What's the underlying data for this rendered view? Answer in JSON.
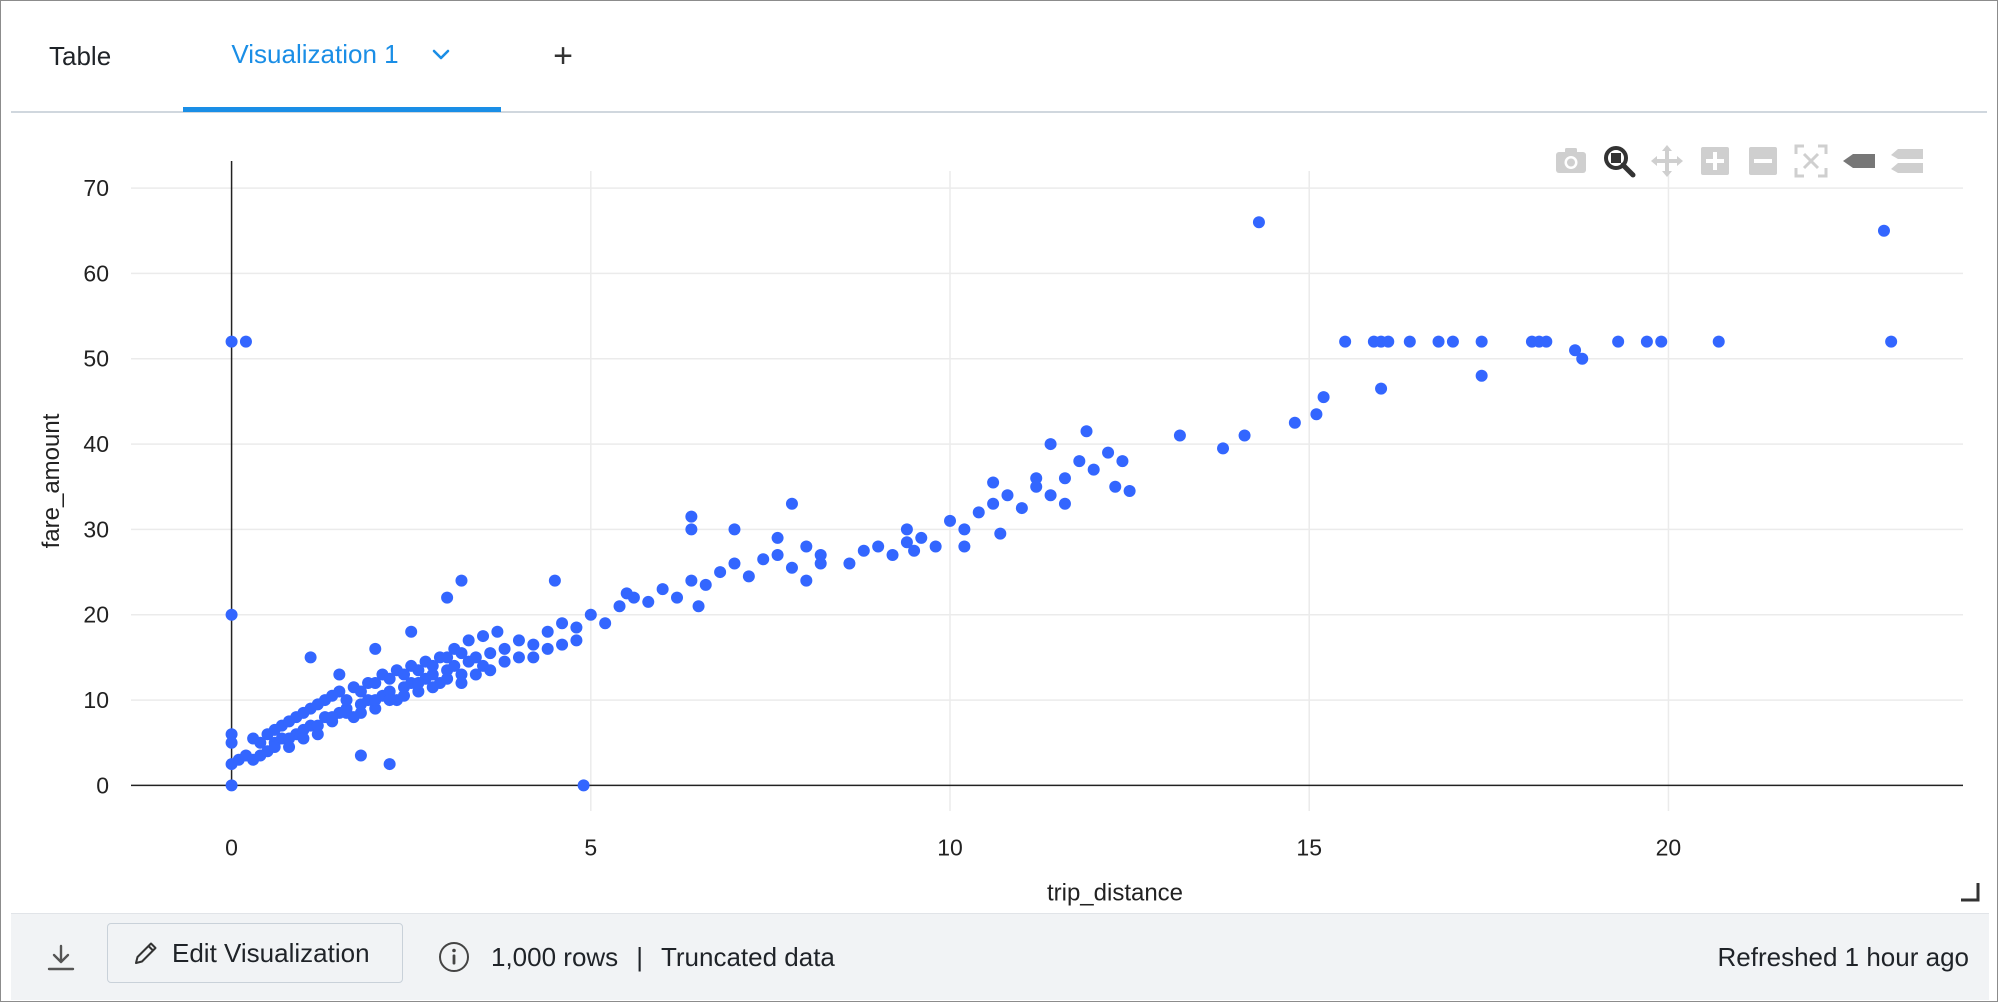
{
  "tabs": [
    {
      "label": "Table"
    },
    {
      "label": "Visualization 1"
    }
  ],
  "add_tab_label": "+",
  "modebar": {
    "icons": [
      "camera-icon",
      "zoom-icon",
      "pan-icon",
      "zoom-in-icon",
      "zoom-out-icon",
      "autoscale-icon",
      "hover-closest-icon",
      "hover-compare-icon"
    ]
  },
  "colors": {
    "accent": "#1a8ee6",
    "marker": "#3366ff"
  },
  "chart_data": {
    "type": "scatter",
    "xlabel": "trip_distance",
    "ylabel": "fare_amount",
    "xlim": [
      -1.4,
      24.1
    ],
    "ylim": [
      -3,
      72
    ],
    "xticks": [
      0,
      5,
      10,
      15,
      20
    ],
    "yticks": [
      0,
      10,
      20,
      30,
      40,
      50,
      60,
      70
    ],
    "grid": true,
    "points": [
      [
        0,
        52
      ],
      [
        0.2,
        52
      ],
      [
        0,
        20
      ],
      [
        0,
        6
      ],
      [
        0,
        5
      ],
      [
        0,
        2.5
      ],
      [
        0,
        0
      ],
      [
        4.9,
        0
      ],
      [
        1.8,
        3.5
      ],
      [
        2.2,
        2.5
      ],
      [
        0.1,
        3
      ],
      [
        0.2,
        3.5
      ],
      [
        0.3,
        3
      ],
      [
        0.4,
        3.5
      ],
      [
        0.5,
        4
      ],
      [
        0.6,
        5
      ],
      [
        0.7,
        5.5
      ],
      [
        0.8,
        4.5
      ],
      [
        0.9,
        6
      ],
      [
        1.0,
        6.5
      ],
      [
        1.1,
        7
      ],
      [
        1.2,
        6
      ],
      [
        1.3,
        8
      ],
      [
        1.4,
        7.5
      ],
      [
        1.5,
        8.5
      ],
      [
        1.6,
        9
      ],
      [
        1.7,
        8
      ],
      [
        1.8,
        9.5
      ],
      [
        1.9,
        10
      ],
      [
        2.0,
        9
      ],
      [
        2.1,
        10.5
      ],
      [
        2.2,
        11
      ],
      [
        2.3,
        10
      ],
      [
        2.4,
        11.5
      ],
      [
        2.5,
        12
      ],
      [
        2.6,
        11
      ],
      [
        2.7,
        12.5
      ],
      [
        2.8,
        13
      ],
      [
        2.9,
        12
      ],
      [
        3.0,
        13.5
      ],
      [
        3.1,
        14
      ],
      [
        3.2,
        13
      ],
      [
        3.3,
        14.5
      ],
      [
        3.4,
        15
      ],
      [
        3.5,
        14
      ],
      [
        3.6,
        15.5
      ],
      [
        3.8,
        16
      ],
      [
        4.0,
        17
      ],
      [
        4.2,
        16.5
      ],
      [
        4.4,
        18
      ],
      [
        4.6,
        19
      ],
      [
        4.8,
        18.5
      ],
      [
        5.0,
        20
      ],
      [
        5.2,
        19
      ],
      [
        5.4,
        21
      ],
      [
        5.6,
        22
      ],
      [
        5.8,
        21.5
      ],
      [
        6.0,
        23
      ],
      [
        6.2,
        22
      ],
      [
        6.4,
        24
      ],
      [
        6.6,
        23.5
      ],
      [
        6.8,
        25
      ],
      [
        7.0,
        26
      ],
      [
        7.2,
        24.5
      ],
      [
        7.4,
        26.5
      ],
      [
        7.6,
        27
      ],
      [
        7.8,
        25.5
      ],
      [
        8.0,
        28
      ],
      [
        8.2,
        27
      ],
      [
        8.6,
        26
      ],
      [
        8.8,
        27.5
      ],
      [
        9.0,
        28
      ],
      [
        9.2,
        27
      ],
      [
        9.4,
        28.5
      ],
      [
        9.6,
        29
      ],
      [
        9.8,
        28
      ],
      [
        10.0,
        31
      ],
      [
        10.2,
        30
      ],
      [
        10.4,
        32
      ],
      [
        10.6,
        33
      ],
      [
        10.8,
        34
      ],
      [
        11.0,
        32.5
      ],
      [
        11.2,
        35
      ],
      [
        11.4,
        34
      ],
      [
        11.6,
        36
      ],
      [
        11.8,
        38
      ],
      [
        12.0,
        37
      ],
      [
        12.2,
        39
      ],
      [
        12.4,
        38
      ],
      [
        0.3,
        5.5
      ],
      [
        0.5,
        6
      ],
      [
        0.7,
        7
      ],
      [
        0.9,
        8
      ],
      [
        1.1,
        9
      ],
      [
        1.3,
        10
      ],
      [
        1.5,
        11
      ],
      [
        1.7,
        11.5
      ],
      [
        1.9,
        12
      ],
      [
        2.1,
        13
      ],
      [
        2.3,
        13.5
      ],
      [
        2.5,
        14
      ],
      [
        2.7,
        14.5
      ],
      [
        2.9,
        15
      ],
      [
        3.1,
        16
      ],
      [
        3.3,
        17
      ],
      [
        3.5,
        17.5
      ],
      [
        3.7,
        18
      ],
      [
        0.4,
        5
      ],
      [
        0.6,
        6.5
      ],
      [
        0.8,
        7.5
      ],
      [
        1.0,
        8.5
      ],
      [
        1.2,
        9.5
      ],
      [
        1.4,
        10.5
      ],
      [
        1.6,
        10
      ],
      [
        1.8,
        11
      ],
      [
        2.0,
        12
      ],
      [
        2.2,
        12.5
      ],
      [
        2.4,
        13
      ],
      [
        2.6,
        13.5
      ],
      [
        2.8,
        14
      ],
      [
        3.0,
        15
      ],
      [
        3.2,
        15.5
      ],
      [
        0.6,
        4.5
      ],
      [
        0.8,
        5.5
      ],
      [
        1.0,
        5.5
      ],
      [
        1.2,
        7
      ],
      [
        1.4,
        8
      ],
      [
        1.6,
        8.5
      ],
      [
        1.8,
        8.5
      ],
      [
        2.0,
        10
      ],
      [
        2.2,
        10
      ],
      [
        2.4,
        10.5
      ],
      [
        2.6,
        12
      ],
      [
        2.8,
        11.5
      ],
      [
        3.0,
        12.5
      ],
      [
        3.2,
        12
      ],
      [
        3.4,
        13
      ],
      [
        3.6,
        13.5
      ],
      [
        3.8,
        14.5
      ],
      [
        4.0,
        15
      ],
      [
        4.2,
        15
      ],
      [
        4.4,
        16
      ],
      [
        4.6,
        16.5
      ],
      [
        4.8,
        17
      ],
      [
        1.1,
        15
      ],
      [
        1.5,
        13
      ],
      [
        2.0,
        16
      ],
      [
        2.5,
        18
      ],
      [
        3.2,
        24
      ],
      [
        3.0,
        22
      ],
      [
        4.5,
        24
      ],
      [
        5.5,
        22.5
      ],
      [
        6.5,
        21
      ],
      [
        6.4,
        30
      ],
      [
        6.4,
        31.5
      ],
      [
        7.0,
        30
      ],
      [
        7.8,
        33
      ],
      [
        7.6,
        29
      ],
      [
        8.0,
        24
      ],
      [
        8.2,
        26
      ],
      [
        9.4,
        30
      ],
      [
        10.2,
        28
      ],
      [
        10.6,
        35.5
      ],
      [
        11.2,
        36
      ],
      [
        11.4,
        40
      ],
      [
        11.9,
        41.5
      ],
      [
        12.3,
        35
      ],
      [
        12.5,
        34.5
      ],
      [
        11.6,
        33
      ],
      [
        10.7,
        29.5
      ],
      [
        9.5,
        27.5
      ],
      [
        13.2,
        41
      ],
      [
        13.8,
        39.5
      ],
      [
        14.1,
        41
      ],
      [
        14.3,
        66
      ],
      [
        14.8,
        42.5
      ],
      [
        15.1,
        43.5
      ],
      [
        15.2,
        45.5
      ],
      [
        15.5,
        52
      ],
      [
        15.9,
        52
      ],
      [
        16.0,
        52
      ],
      [
        16.1,
        52
      ],
      [
        16.0,
        46.5
      ],
      [
        16.4,
        52
      ],
      [
        16.8,
        52
      ],
      [
        17.0,
        52
      ],
      [
        17.4,
        52
      ],
      [
        17.4,
        48
      ],
      [
        18.1,
        52
      ],
      [
        18.2,
        52
      ],
      [
        18.3,
        52
      ],
      [
        18.7,
        51
      ],
      [
        18.8,
        50
      ],
      [
        19.3,
        52
      ],
      [
        19.7,
        52
      ],
      [
        19.9,
        52
      ],
      [
        20.7,
        52
      ],
      [
        23.0,
        65
      ],
      [
        23.1,
        52
      ]
    ]
  },
  "footer": {
    "edit_label": "Edit Visualization",
    "rows_label": "1,000 rows",
    "separator": "|",
    "truncated_label": "Truncated data",
    "refreshed_label": "Refreshed 1 hour ago"
  }
}
